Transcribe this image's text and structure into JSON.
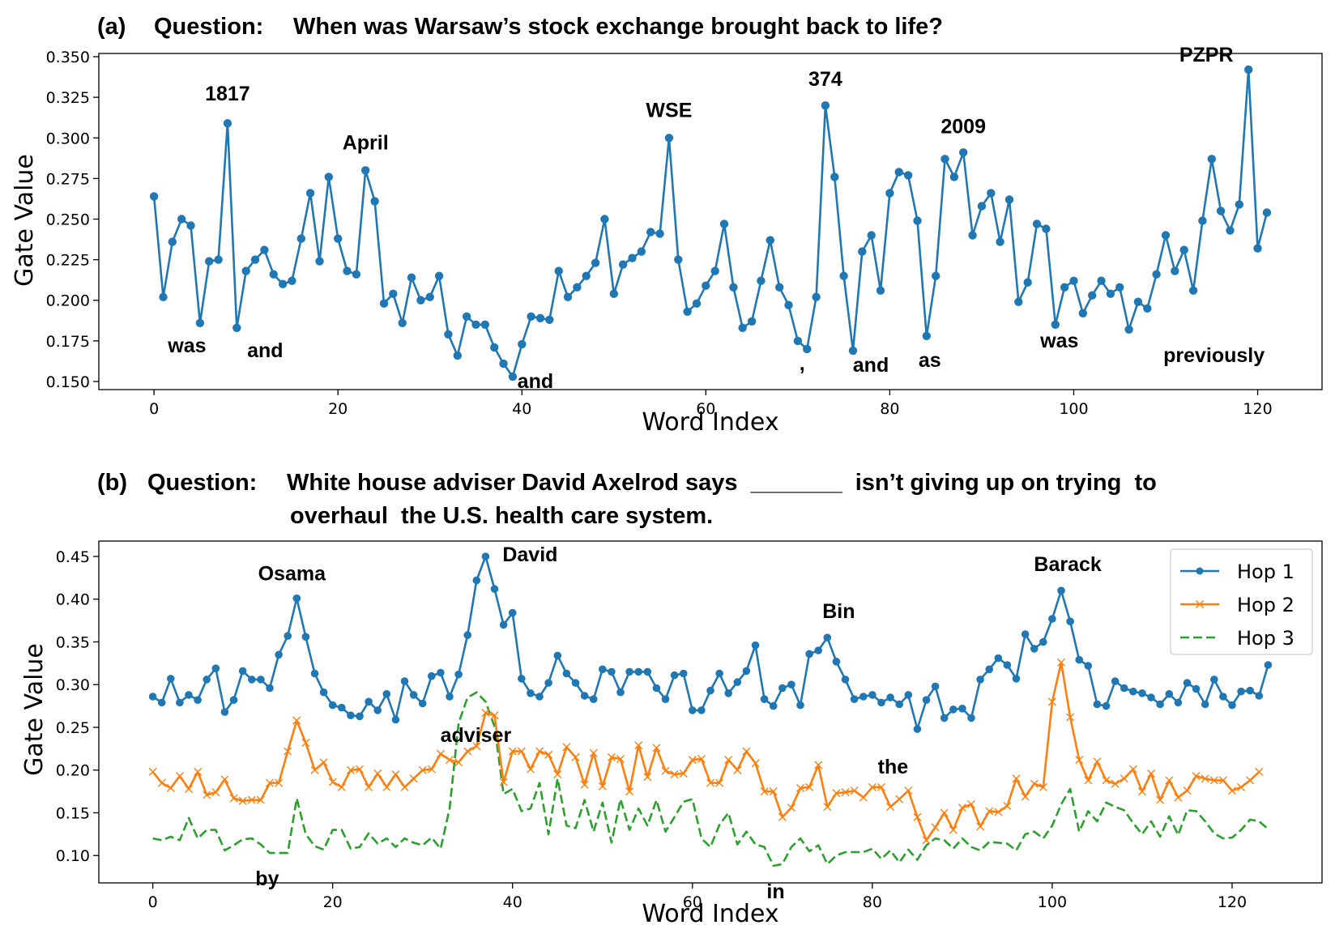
{
  "chart_data": [
    {
      "type": "line",
      "panel": "(a)",
      "title_prefix": "Question:",
      "title_lines": [
        "When was Warsaw’s stock exchange brought back to life?"
      ],
      "xlabel": "Word Index",
      "ylabel": "Gate Value",
      "xlim": [
        -6,
        127
      ],
      "ylim": [
        0.145,
        0.352
      ],
      "xticks": [
        0,
        20,
        40,
        60,
        80,
        100,
        120
      ],
      "yticks": [
        0.15,
        0.175,
        0.2,
        0.225,
        0.25,
        0.275,
        0.3,
        0.325,
        0.35
      ],
      "ytick_labels": [
        "0.150",
        "0.175",
        "0.200",
        "0.225",
        "0.250",
        "0.275",
        "0.300",
        "0.325",
        "0.350"
      ],
      "series": [
        {
          "color": "#1f77b4",
          "marker": "o",
          "linestyle": "solid",
          "values": [
            0.264,
            0.202,
            0.236,
            0.25,
            0.246,
            0.186,
            0.224,
            0.225,
            0.309,
            0.183,
            0.218,
            0.225,
            0.231,
            0.216,
            0.21,
            0.212,
            0.238,
            0.266,
            0.224,
            0.276,
            0.238,
            0.218,
            0.216,
            0.28,
            0.261,
            0.198,
            0.204,
            0.186,
            0.214,
            0.2,
            0.202,
            0.215,
            0.179,
            0.166,
            0.19,
            0.185,
            0.185,
            0.171,
            0.161,
            0.153,
            0.173,
            0.19,
            0.189,
            0.188,
            0.218,
            0.202,
            0.208,
            0.215,
            0.223,
            0.25,
            0.204,
            0.222,
            0.226,
            0.23,
            0.242,
            0.241,
            0.3,
            0.225,
            0.193,
            0.198,
            0.209,
            0.218,
            0.247,
            0.208,
            0.183,
            0.187,
            0.212,
            0.237,
            0.208,
            0.197,
            0.175,
            0.17,
            0.202,
            0.32,
            0.276,
            0.215,
            0.169,
            0.23,
            0.24,
            0.206,
            0.266,
            0.279,
            0.277,
            0.249,
            0.178,
            0.215,
            0.287,
            0.276,
            0.291,
            0.24,
            0.258,
            0.266,
            0.236,
            0.262,
            0.199,
            0.211,
            0.247,
            0.244,
            0.185,
            0.208,
            0.212,
            0.192,
            0.203,
            0.212,
            0.204,
            0.208,
            0.182,
            0.199,
            0.195,
            0.216,
            0.24,
            0.218,
            0.231,
            0.206,
            0.249,
            0.287,
            0.255,
            0.243,
            0.259,
            0.342,
            0.232,
            0.254
          ]
        }
      ],
      "annotations": [
        {
          "text": "1817",
          "x": 8,
          "y": 0.309
        },
        {
          "text": "was",
          "x": 5,
          "y": 0.186
        },
        {
          "text": "and",
          "x": 9,
          "y": 0.183
        },
        {
          "text": "April",
          "x": 23,
          "y": 0.28
        },
        {
          "text": "and",
          "x": 39,
          "y": 0.153
        },
        {
          "text": "WSE",
          "x": 56,
          "y": 0.3
        },
        {
          "text": "374",
          "x": 73,
          "y": 0.32
        },
        {
          "text": ",",
          "x": 71,
          "y": 0.17
        },
        {
          "text": "and",
          "x": 76,
          "y": 0.169
        },
        {
          "text": "as",
          "x": 84,
          "y": 0.178
        },
        {
          "text": "2009",
          "x": 88,
          "y": 0.291
        },
        {
          "text": "was",
          "x": 98,
          "y": 0.185
        },
        {
          "text": "previously",
          "x": 106,
          "y": 0.182
        },
        {
          "text": "PZPR",
          "x": 119,
          "y": 0.342
        }
      ],
      "grid": false
    },
    {
      "type": "line",
      "panel": "(b)",
      "title_prefix": "Question:",
      "title_lines": [
        "White house adviser David Axelrod says  _______  isn’t giving up on trying  to",
        "overhaul  the U.S. health care system."
      ],
      "xlabel": "Word Index",
      "ylabel": "Gate Value",
      "xlim": [
        -6,
        130
      ],
      "ylim": [
        0.068,
        0.468
      ],
      "xticks": [
        0,
        20,
        40,
        60,
        80,
        100,
        120
      ],
      "yticks": [
        0.1,
        0.15,
        0.2,
        0.25,
        0.3,
        0.35,
        0.4,
        0.45
      ],
      "ytick_labels": [
        "0.10",
        "0.15",
        "0.20",
        "0.25",
        "0.30",
        "0.35",
        "0.40",
        "0.45"
      ],
      "legend": {
        "position": "upper right"
      },
      "series": [
        {
          "name": "Hop 1",
          "color": "#1f77b4",
          "marker": "o",
          "linestyle": "solid",
          "values": [
            0.286,
            0.279,
            0.307,
            0.279,
            0.288,
            0.282,
            0.306,
            0.319,
            0.268,
            0.282,
            0.316,
            0.306,
            0.306,
            0.296,
            0.335,
            0.357,
            0.401,
            0.356,
            0.313,
            0.291,
            0.276,
            0.273,
            0.264,
            0.263,
            0.28,
            0.27,
            0.289,
            0.259,
            0.304,
            0.288,
            0.278,
            0.31,
            0.314,
            0.286,
            0.312,
            0.358,
            0.422,
            0.45,
            0.412,
            0.37,
            0.384,
            0.307,
            0.29,
            0.286,
            0.302,
            0.334,
            0.313,
            0.302,
            0.287,
            0.283,
            0.318,
            0.315,
            0.291,
            0.315,
            0.315,
            0.315,
            0.296,
            0.283,
            0.311,
            0.313,
            0.27,
            0.27,
            0.293,
            0.313,
            0.29,
            0.303,
            0.316,
            0.346,
            0.283,
            0.275,
            0.296,
            0.3,
            0.276,
            0.336,
            0.34,
            0.355,
            0.327,
            0.306,
            0.283,
            0.286,
            0.288,
            0.279,
            0.285,
            0.277,
            0.288,
            0.248,
            0.282,
            0.298,
            0.261,
            0.271,
            0.272,
            0.261,
            0.306,
            0.318,
            0.331,
            0.323,
            0.307,
            0.359,
            0.342,
            0.35,
            0.377,
            0.41,
            0.374,
            0.329,
            0.322,
            0.277,
            0.275,
            0.304,
            0.296,
            0.292,
            0.29,
            0.285,
            0.277,
            0.289,
            0.279,
            0.302,
            0.295,
            0.277,
            0.306,
            0.286,
            0.276,
            0.292,
            0.293,
            0.287,
            0.323
          ]
        },
        {
          "name": "Hop 2",
          "color": "#ff7f0e",
          "marker": "x",
          "linestyle": "solid",
          "values": [
            0.198,
            0.185,
            0.179,
            0.193,
            0.178,
            0.198,
            0.171,
            0.174,
            0.189,
            0.167,
            0.164,
            0.165,
            0.165,
            0.185,
            0.185,
            0.222,
            0.258,
            0.232,
            0.2,
            0.209,
            0.186,
            0.18,
            0.2,
            0.201,
            0.18,
            0.196,
            0.18,
            0.195,
            0.18,
            0.19,
            0.2,
            0.201,
            0.219,
            0.212,
            0.209,
            0.222,
            0.228,
            0.267,
            0.264,
            0.186,
            0.222,
            0.222,
            0.201,
            0.222,
            0.218,
            0.195,
            0.227,
            0.215,
            0.183,
            0.22,
            0.181,
            0.215,
            0.213,
            0.175,
            0.229,
            0.192,
            0.226,
            0.199,
            0.195,
            0.196,
            0.212,
            0.213,
            0.185,
            0.185,
            0.212,
            0.2,
            0.222,
            0.208,
            0.175,
            0.175,
            0.145,
            0.156,
            0.179,
            0.18,
            0.206,
            0.157,
            0.173,
            0.174,
            0.176,
            0.168,
            0.18,
            0.18,
            0.157,
            0.166,
            0.176,
            0.145,
            0.118,
            0.133,
            0.15,
            0.13,
            0.156,
            0.16,
            0.134,
            0.152,
            0.151,
            0.158,
            0.19,
            0.169,
            0.184,
            0.18,
            0.28,
            0.326,
            0.262,
            0.212,
            0.188,
            0.21,
            0.188,
            0.184,
            0.19,
            0.201,
            0.175,
            0.196,
            0.165,
            0.188,
            0.168,
            0.176,
            0.193,
            0.19,
            0.188,
            0.188,
            0.176,
            0.18,
            0.188,
            0.198
          ]
        },
        {
          "name": "Hop 3",
          "color": "#2ca02c",
          "marker": "",
          "linestyle": "dashed",
          "values": [
            0.12,
            0.118,
            0.122,
            0.118,
            0.144,
            0.12,
            0.13,
            0.13,
            0.106,
            0.112,
            0.119,
            0.12,
            0.113,
            0.103,
            0.103,
            0.103,
            0.167,
            0.125,
            0.111,
            0.107,
            0.13,
            0.13,
            0.108,
            0.11,
            0.126,
            0.114,
            0.12,
            0.11,
            0.12,
            0.115,
            0.112,
            0.121,
            0.108,
            0.155,
            0.255,
            0.285,
            0.291,
            0.28,
            0.251,
            0.172,
            0.178,
            0.152,
            0.155,
            0.185,
            0.125,
            0.19,
            0.135,
            0.132,
            0.165,
            0.128,
            0.162,
            0.115,
            0.166,
            0.13,
            0.155,
            0.135,
            0.165,
            0.128,
            0.145,
            0.163,
            0.166,
            0.12,
            0.11,
            0.136,
            0.15,
            0.113,
            0.128,
            0.113,
            0.11,
            0.088,
            0.09,
            0.11,
            0.12,
            0.105,
            0.112,
            0.09,
            0.1,
            0.104,
            0.104,
            0.104,
            0.108,
            0.096,
            0.106,
            0.092,
            0.107,
            0.095,
            0.112,
            0.12,
            0.118,
            0.108,
            0.12,
            0.11,
            0.106,
            0.116,
            0.115,
            0.114,
            0.106,
            0.125,
            0.128,
            0.12,
            0.135,
            0.16,
            0.178,
            0.128,
            0.152,
            0.14,
            0.162,
            0.157,
            0.153,
            0.138,
            0.125,
            0.14,
            0.122,
            0.146,
            0.124,
            0.153,
            0.152,
            0.14,
            0.126,
            0.12,
            0.121,
            0.13,
            0.142,
            0.14,
            0.131
          ]
        }
      ],
      "annotations": [
        {
          "text": "Osama",
          "x": 16,
          "y": 0.401
        },
        {
          "text": "David",
          "x": 37,
          "y": 0.45
        },
        {
          "text": "adviser",
          "x": 37,
          "y": 0.267
        },
        {
          "text": "Bin",
          "x": 76,
          "y": 0.355
        },
        {
          "text": "the",
          "x": 85,
          "y": 0.248
        },
        {
          "text": "Barack",
          "x": 102,
          "y": 0.41
        },
        {
          "text": "by",
          "x": 12,
          "y": 0.103
        },
        {
          "text": "in",
          "x": 67,
          "y": 0.088
        }
      ],
      "grid": false
    }
  ]
}
